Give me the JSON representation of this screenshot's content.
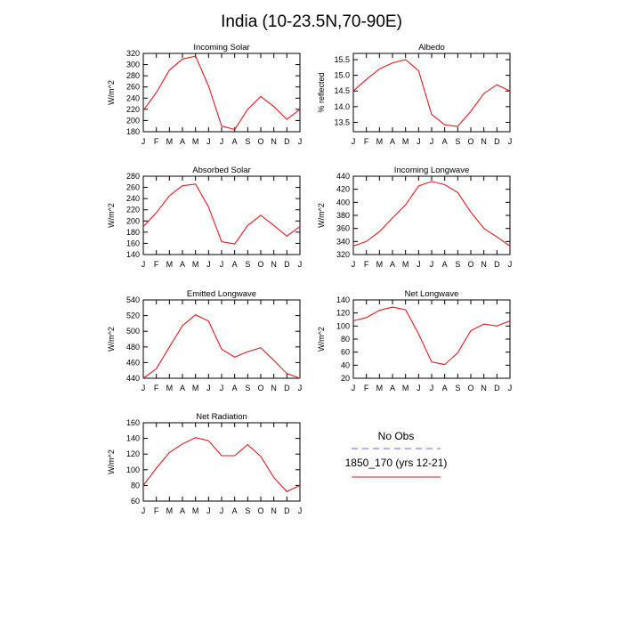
{
  "title": "India (10-23.5N,70-90E)",
  "legend": {
    "obs_label": "No Obs",
    "obs_color": "#6666ff",
    "model_label": "1850_170 (yrs 12-21)",
    "model_color": "#e31a1c"
  },
  "chart_data": [
    {
      "type": "line",
      "title": "Incoming Solar",
      "ylabel": "W/m^2",
      "categories": [
        "J",
        "F",
        "M",
        "A",
        "M",
        "J",
        "J",
        "A",
        "S",
        "O",
        "N",
        "D",
        "J"
      ],
      "ylim": [
        180,
        320
      ],
      "yticks": [
        180,
        200,
        220,
        240,
        260,
        280,
        300,
        320
      ],
      "series": [
        {
          "values": [
            218,
            250,
            290,
            310,
            315,
            262,
            190,
            184,
            220,
            243,
            225,
            202,
            220
          ]
        }
      ]
    },
    {
      "type": "line",
      "title": "Albedo",
      "ylabel": "% reflected",
      "categories": [
        "J",
        "F",
        "M",
        "A",
        "M",
        "J",
        "J",
        "A",
        "S",
        "O",
        "N",
        "D",
        "J"
      ],
      "ylim": [
        13.2,
        15.7
      ],
      "yticks": [
        13.5,
        14.0,
        14.5,
        15.0,
        15.5
      ],
      "ytick_labels": [
        "13.5",
        "14.0",
        "14.5",
        "15.0",
        "15.5"
      ],
      "series": [
        {
          "values": [
            14.5,
            14.87,
            15.2,
            15.4,
            15.5,
            15.15,
            13.75,
            13.42,
            13.37,
            13.85,
            14.42,
            14.7,
            14.5
          ]
        }
      ]
    },
    {
      "type": "line",
      "title": "Absorbed Solar",
      "ylabel": "W/m^2",
      "categories": [
        "J",
        "F",
        "M",
        "A",
        "M",
        "J",
        "J",
        "A",
        "S",
        "O",
        "N",
        "D",
        "J"
      ],
      "ylim": [
        140,
        280
      ],
      "yticks": [
        140,
        160,
        180,
        200,
        220,
        240,
        260,
        280
      ],
      "series": [
        {
          "values": [
            190,
            215,
            245,
            263,
            266,
            225,
            163,
            159,
            192,
            210,
            192,
            173,
            190
          ]
        }
      ]
    },
    {
      "type": "line",
      "title": "Incoming Longwave",
      "ylabel": "W/m^2",
      "categories": [
        "J",
        "F",
        "M",
        "A",
        "M",
        "J",
        "J",
        "A",
        "S",
        "O",
        "N",
        "D",
        "J"
      ],
      "ylim": [
        320,
        440
      ],
      "yticks": [
        320,
        340,
        360,
        380,
        400,
        420,
        440
      ],
      "series": [
        {
          "values": [
            333,
            340,
            355,
            376,
            396,
            425,
            432,
            427,
            415,
            385,
            360,
            347,
            333
          ]
        }
      ]
    },
    {
      "type": "line",
      "title": "Emitted Longwave",
      "ylabel": "W/m^2",
      "categories": [
        "J",
        "F",
        "M",
        "A",
        "M",
        "J",
        "J",
        "A",
        "S",
        "O",
        "N",
        "D",
        "J"
      ],
      "ylim": [
        440,
        540
      ],
      "yticks": [
        440,
        460,
        480,
        500,
        520,
        540
      ],
      "series": [
        {
          "values": [
            440,
            452,
            480,
            507,
            521,
            513,
            477,
            467,
            474,
            479,
            463,
            446,
            440
          ]
        }
      ]
    },
    {
      "type": "line",
      "title": "Net Longwave",
      "ylabel": "W/m^2",
      "categories": [
        "J",
        "F",
        "M",
        "A",
        "M",
        "J",
        "J",
        "A",
        "S",
        "O",
        "N",
        "D",
        "J"
      ],
      "ylim": [
        20,
        140
      ],
      "yticks": [
        20,
        40,
        60,
        80,
        100,
        120,
        140
      ],
      "series": [
        {
          "values": [
            108,
            113,
            124,
            129,
            125,
            88,
            45,
            41,
            59,
            93,
            103,
            100,
            108
          ]
        }
      ]
    },
    {
      "type": "line",
      "title": "Net Radiation",
      "ylabel": "W/m^2",
      "categories": [
        "J",
        "F",
        "M",
        "A",
        "M",
        "J",
        "J",
        "A",
        "S",
        "O",
        "N",
        "D",
        "J"
      ],
      "ylim": [
        60,
        160
      ],
      "yticks": [
        60,
        80,
        100,
        120,
        140,
        160
      ],
      "series": [
        {
          "values": [
            80,
            102,
            122,
            133,
            141,
            137,
            118,
            118,
            132,
            117,
            90,
            72,
            80
          ]
        }
      ]
    }
  ]
}
